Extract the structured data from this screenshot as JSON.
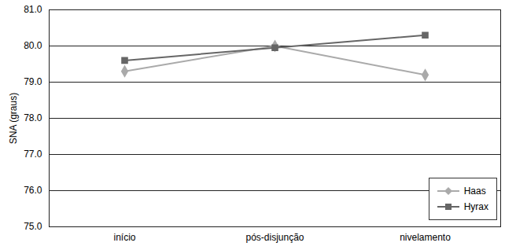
{
  "chart_data": {
    "type": "line",
    "categories": [
      "início",
      "pós-disjunção",
      "nivelamento"
    ],
    "series": [
      {
        "name": "Haas",
        "color": "#aaaaaa",
        "marker": "diamond",
        "values": [
          79.3,
          80.0,
          79.2
        ]
      },
      {
        "name": "Hyrax",
        "color": "#666666",
        "marker": "square",
        "values": [
          79.6,
          79.95,
          80.3
        ]
      }
    ],
    "y_label": "SNA (graus)",
    "ylim": [
      75,
      81
    ],
    "yticks": [
      {
        "value": 75,
        "label": "75.0"
      },
      {
        "value": 76,
        "label": "76.0"
      },
      {
        "value": 77,
        "label": "77.0"
      },
      {
        "value": 78,
        "label": "78.0"
      },
      {
        "value": 79,
        "label": "79.0"
      },
      {
        "value": 80,
        "label": "80.0"
      },
      {
        "value": 81,
        "label": "81.0"
      }
    ],
    "grid": true,
    "legend": "lower right"
  }
}
